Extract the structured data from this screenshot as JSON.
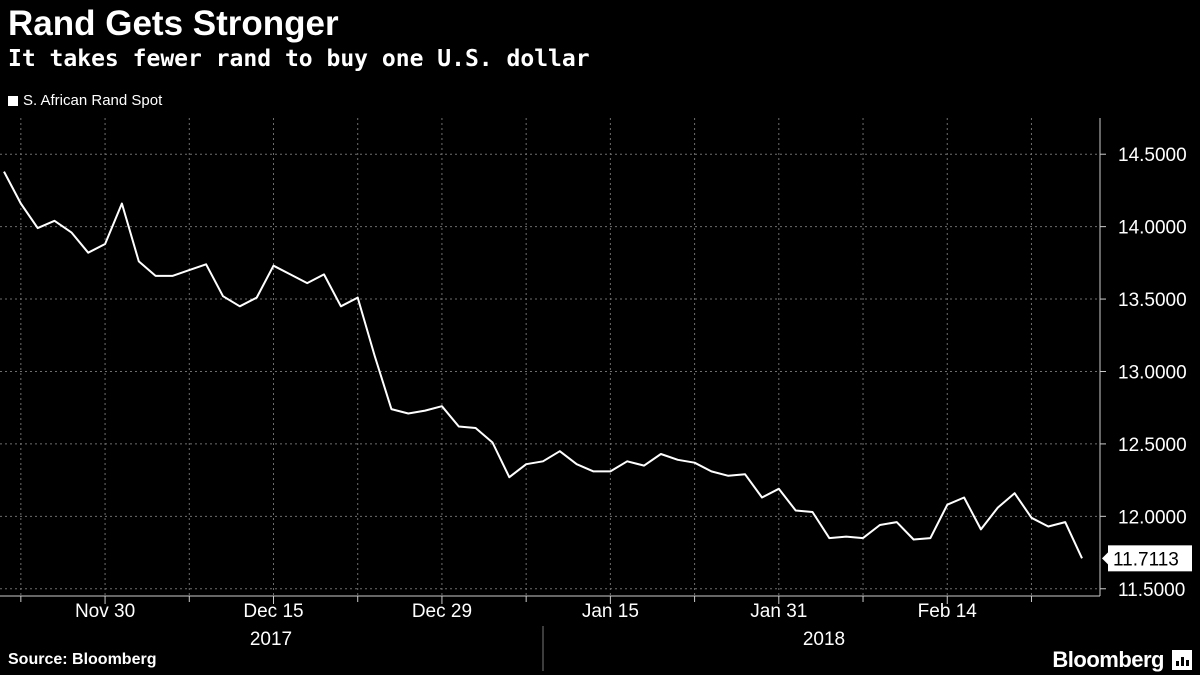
{
  "header": {
    "title": "Rand Gets Stronger",
    "subtitle": "It takes fewer rand to buy one U.S. dollar"
  },
  "footer": {
    "source": "Source: Bloomberg",
    "brand": "Bloomberg"
  },
  "colors": {
    "background": "#000000",
    "line": "#ffffff",
    "grid": "#6e6e6e"
  },
  "chart_data": {
    "type": "line",
    "title": "Rand Gets Stronger",
    "subtitle": "It takes fewer rand to buy one U.S. dollar",
    "legend": [
      "S. African Rand Spot"
    ],
    "ylim": [
      11.45,
      14.75
    ],
    "yticks": [
      14.5,
      14.0,
      13.5,
      13.0,
      12.5,
      12.0,
      11.5
    ],
    "ytick_labels": [
      "14.5000",
      "14.0000",
      "13.5000",
      "13.0000",
      "12.5000",
      "12.0000",
      "11.5000"
    ],
    "x_tick_labels": [
      "Nov 30",
      "Dec 15",
      "Dec 29",
      "Jan 15",
      "Jan 31",
      "Feb 14"
    ],
    "x_tick_index": [
      6,
      16,
      26,
      36,
      46,
      56
    ],
    "year_labels": [
      "2017",
      "2018"
    ],
    "last_value_label": "11.7113",
    "series": [
      {
        "name": "S. African Rand Spot",
        "values": [
          14.38,
          14.16,
          13.99,
          14.04,
          13.96,
          13.82,
          13.88,
          14.16,
          13.76,
          13.66,
          13.66,
          13.7,
          13.74,
          13.52,
          13.45,
          13.51,
          13.73,
          13.67,
          13.61,
          13.67,
          13.45,
          13.51,
          13.11,
          12.74,
          12.71,
          12.73,
          12.76,
          12.62,
          12.61,
          12.51,
          12.27,
          12.36,
          12.38,
          12.45,
          12.36,
          12.31,
          12.31,
          12.38,
          12.35,
          12.43,
          12.39,
          12.37,
          12.31,
          12.28,
          12.29,
          12.13,
          12.19,
          12.04,
          12.03,
          11.85,
          11.86,
          11.85,
          11.94,
          11.96,
          11.84,
          11.85,
          12.08,
          12.13,
          11.91,
          12.06,
          12.16,
          11.99,
          11.93,
          11.96,
          11.71
        ]
      }
    ]
  }
}
